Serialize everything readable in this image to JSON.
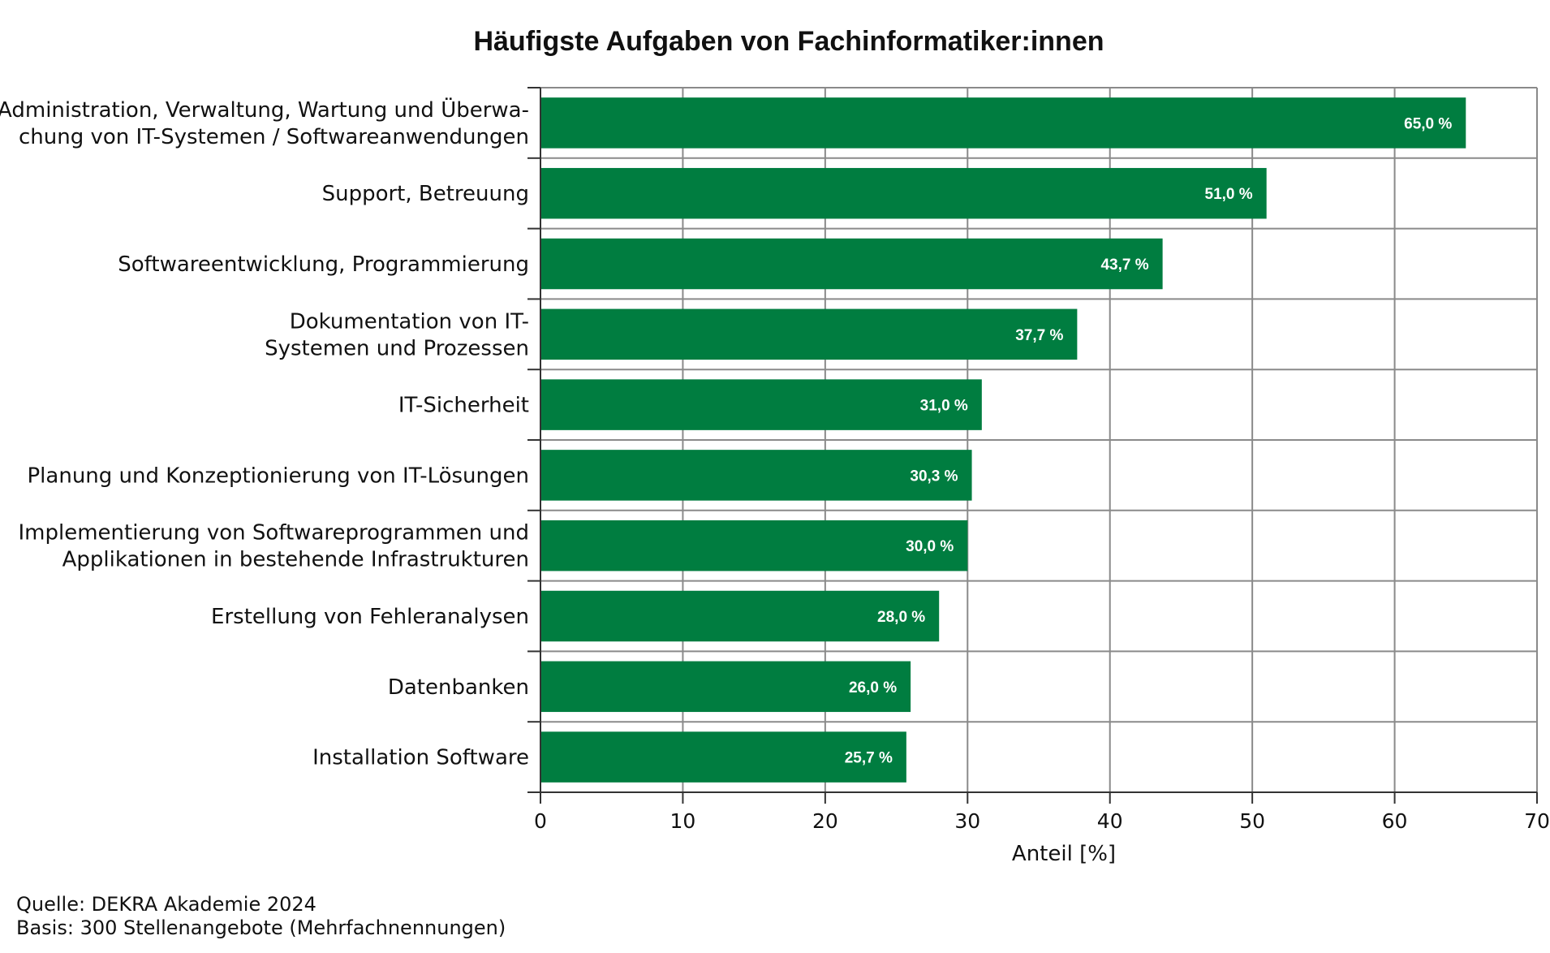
{
  "chart_data": {
    "type": "bar",
    "orientation": "horizontal",
    "title": "Häufigste Aufgaben von Fachinformatiker:innen",
    "categories": [
      [
        "Administration, Verwaltung, Wartung und Überwa-",
        "chung von IT-Systemen / Softwareanwendungen"
      ],
      [
        "Support, Betreuung"
      ],
      [
        "Softwareentwicklung, Programmierung"
      ],
      [
        "Dokumentation von IT-",
        "Systemen und Prozessen"
      ],
      [
        "IT-Sicherheit"
      ],
      [
        "Planung und Konzeptionierung von IT-Lösungen"
      ],
      [
        "Implementierung von Softwareprogrammen und",
        "Applikationen in bestehende Infrastrukturen"
      ],
      [
        "Erstellung von Fehleranalysen"
      ],
      [
        "Datenbanken"
      ],
      [
        "Installation Software"
      ]
    ],
    "values": [
      65.0,
      51.0,
      43.7,
      37.7,
      31.0,
      30.3,
      30.0,
      28.0,
      26.0,
      25.7
    ],
    "value_labels": [
      "65,0 %",
      "51,0 %",
      "43,7 %",
      "37,7 %",
      "31,0 %",
      "30,3 %",
      "30,0 %",
      "28,0 %",
      "26,0 %",
      "25,7 %"
    ],
    "xlabel": "Anteil [%]",
    "ylabel": "",
    "xlim": [
      0,
      70
    ],
    "xticks": [
      0,
      10,
      20,
      30,
      40,
      50,
      60,
      70
    ],
    "grid": true,
    "legend": "none",
    "bar_color": "#007d40",
    "grid_color": "#8a8a8a"
  },
  "footer": {
    "source": "Quelle: DEKRA Akademie 2024",
    "basis": "Basis: 300 Stellenangebote (Mehrfachnennungen)"
  }
}
